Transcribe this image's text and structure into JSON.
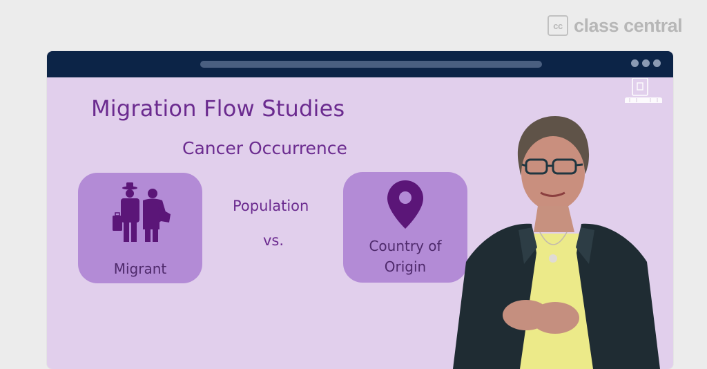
{
  "brand": {
    "logo_text": "cc",
    "name": "class central"
  },
  "browser": {
    "bar_color": "#0c2447",
    "content_background": "#e1cfec"
  },
  "slide": {
    "title": "Migration Flow Studies",
    "subtitle": "Cancer Occurrence",
    "cards": [
      {
        "label": "Migrant",
        "icon": "migrant-family-icon"
      },
      {
        "label_lines": [
          "Country of",
          "Origin"
        ],
        "icon": "location-pin-icon"
      }
    ],
    "middle": {
      "population": "Population",
      "vs": "vs."
    },
    "accent_color": "#6b2b8f",
    "card_color": "#b38bd6"
  },
  "presenter": {
    "icon": "presenter-figure"
  }
}
